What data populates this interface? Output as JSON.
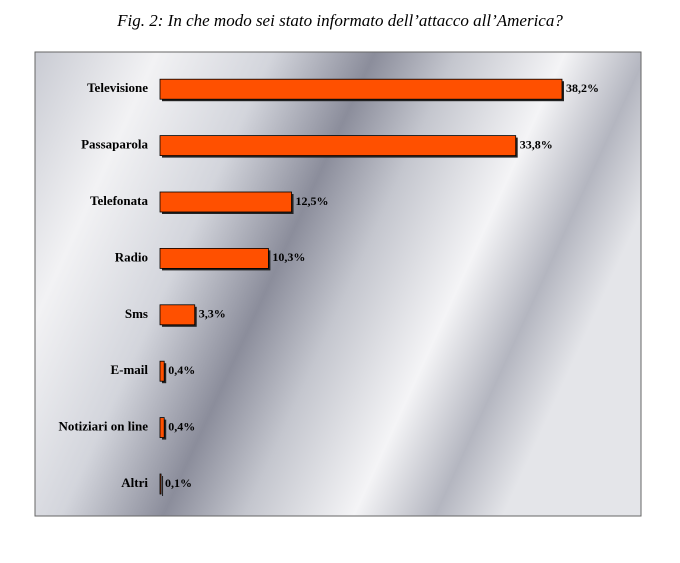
{
  "chart_data": {
    "type": "bar",
    "orientation": "horizontal",
    "title": "Fig. 2: In che modo sei stato informato dell’attacco all’America?",
    "categories": [
      "Televisione",
      "Passaparola",
      "Telefonata",
      "Radio",
      "Sms",
      "E-mail",
      "Notiziari on line",
      "Altri"
    ],
    "values": [
      38.2,
      33.8,
      12.5,
      10.3,
      3.3,
      0.4,
      0.4,
      0.1
    ],
    "value_labels": [
      "38,2%",
      "33,8%",
      "12,5%",
      "10,3%",
      "3,3%",
      "0,4%",
      "0,4%",
      "0,1%"
    ],
    "color": "#ff5000"
  }
}
